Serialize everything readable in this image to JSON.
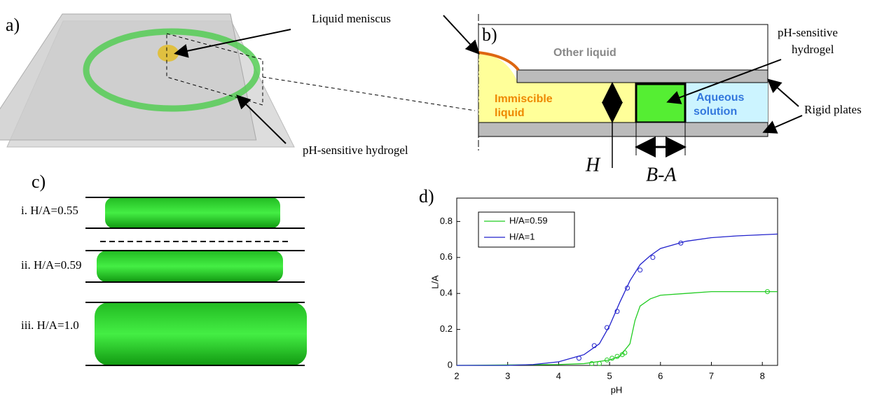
{
  "panels": {
    "a": {
      "label": "a)",
      "meniscus": "Liquid meniscus",
      "hydrogel": "pH-sensitive hydrogel"
    },
    "b": {
      "label": "b)",
      "hydrogel": [
        "pH-sensitive",
        "hydrogel"
      ],
      "other": "Other liquid",
      "immiscible": [
        "Immiscible",
        "liquid"
      ],
      "aqueous": [
        "Aqueous",
        "solution"
      ],
      "plates": "Rigid plates",
      "h": "H",
      "ba": "B-A"
    },
    "c": {
      "label": "c)",
      "rows": [
        "i. H/A=0.55",
        "ii. H/A=0.59",
        "iii. H/A=1.0"
      ]
    },
    "d": {
      "label": "d)"
    }
  },
  "chart_data": {
    "type": "line",
    "xlabel": "pH",
    "ylabel": "L/A",
    "xlim": [
      2,
      8.3
    ],
    "xticks": [
      2,
      3,
      4,
      5,
      6,
      7,
      8
    ],
    "ylim": [
      0,
      0.93
    ],
    "yticks": [
      0,
      0.2,
      0.4,
      0.6,
      0.8
    ],
    "legend": "upper left",
    "series": [
      {
        "name": "H/A=0.59",
        "color": "#22cc22",
        "x": [
          2,
          4,
          4.5,
          5,
          5.2,
          5.4,
          5.5,
          5.6,
          5.8,
          6,
          6.5,
          7,
          8.3
        ],
        "values": [
          0,
          0.005,
          0.01,
          0.03,
          0.05,
          0.12,
          0.25,
          0.33,
          0.37,
          0.39,
          0.4,
          0.41,
          0.41
        ],
        "points_x": [
          4.65,
          4.8,
          4.95,
          5.05,
          5.15,
          5.25,
          5.3,
          8.1
        ],
        "points_y": [
          0.01,
          0.01,
          0.03,
          0.04,
          0.05,
          0.06,
          0.07,
          0.41
        ]
      },
      {
        "name": "H/A=1",
        "color": "#2222cc",
        "x": [
          2,
          3,
          3.5,
          4,
          4.5,
          4.8,
          5,
          5.2,
          5.4,
          5.6,
          5.8,
          6,
          6.5,
          7,
          7.5,
          8.3
        ],
        "values": [
          0,
          0,
          0.005,
          0.02,
          0.06,
          0.12,
          0.22,
          0.35,
          0.47,
          0.56,
          0.61,
          0.65,
          0.69,
          0.71,
          0.72,
          0.73
        ],
        "points_x": [
          4.4,
          4.7,
          4.95,
          5.15,
          5.35,
          5.6,
          5.85,
          6.4
        ],
        "points_y": [
          0.04,
          0.11,
          0.21,
          0.3,
          0.43,
          0.53,
          0.6,
          0.68
        ]
      }
    ]
  }
}
